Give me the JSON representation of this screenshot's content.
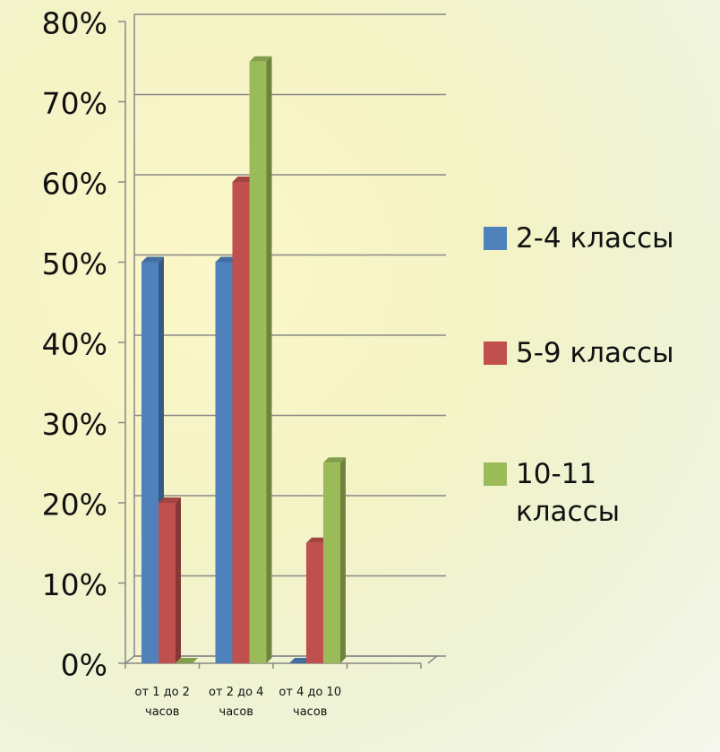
{
  "chart_data": {
    "type": "bar",
    "categories": [
      "от 1 до 2 часов",
      "от 2 до 4 часов",
      "от 4 до 10 часов",
      null
    ],
    "series": [
      {
        "name": "2-4 классы",
        "color": "#4f81bd",
        "values": [
          50,
          50,
          0,
          null
        ]
      },
      {
        "name": "5-9 классы",
        "color": "#c0504d",
        "values": [
          20,
          60,
          15,
          null
        ]
      },
      {
        "name": "10-11 классы",
        "color": "#9bbb59",
        "values": [
          0,
          75,
          25,
          null
        ]
      }
    ],
    "ylim": [
      0,
      80
    ],
    "yticks": [
      {
        "value": 0,
        "label": "0%"
      },
      {
        "value": 10,
        "label": "10%"
      },
      {
        "value": 20,
        "label": "20%"
      },
      {
        "value": 30,
        "label": "30%"
      },
      {
        "value": 40,
        "label": "40%"
      },
      {
        "value": 50,
        "label": "50%"
      },
      {
        "value": 60,
        "label": "60%"
      },
      {
        "value": 70,
        "label": "70%"
      },
      {
        "value": 80,
        "label": "80%"
      }
    ],
    "grid": true,
    "legend": "right"
  }
}
